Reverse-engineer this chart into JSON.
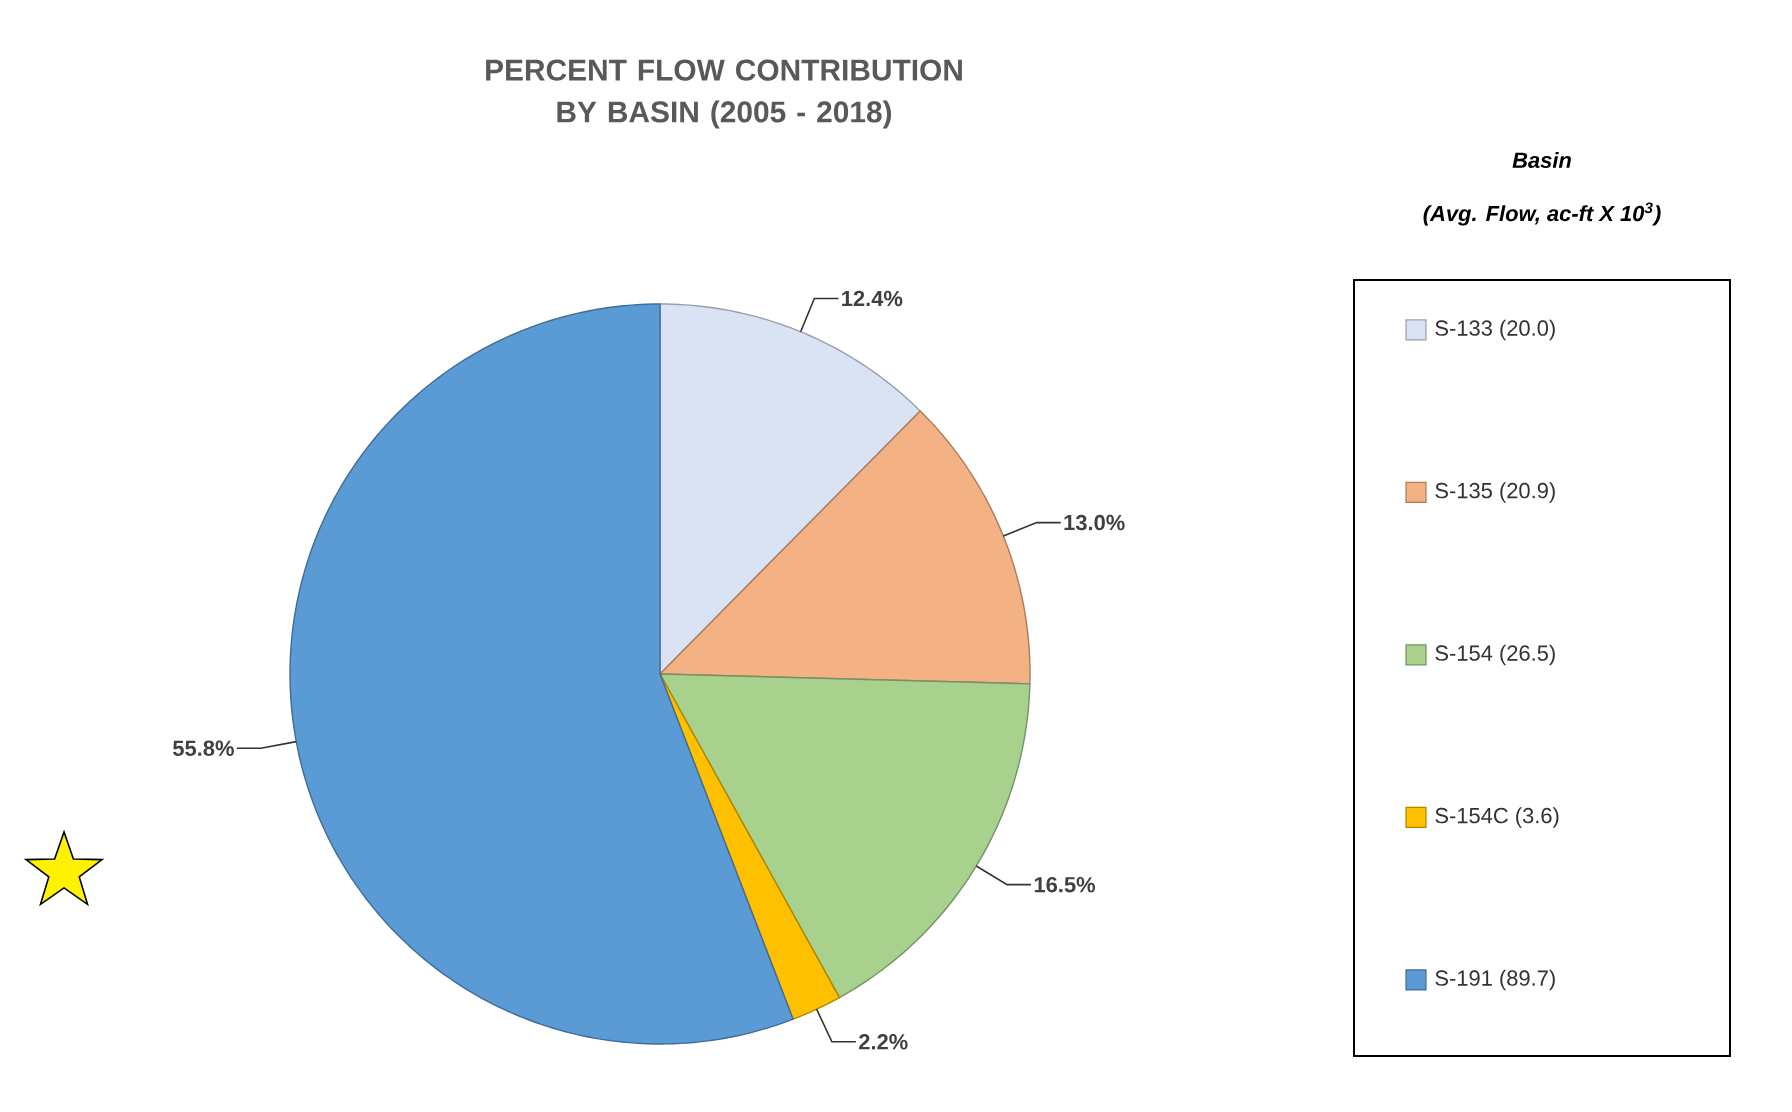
{
  "chart_data": {
    "type": "pie",
    "title": "PERCENT FLOW CONTRIBUTION BY BASIN (2005 - 2018)",
    "legend_title": "Basin",
    "annotations": [
      "(Avg. Flow, ac-ft X 10$^{3}$)"
    ],
    "categories": [
      "S-133 (20.0)",
      "S-135 (20.9)",
      "S-154 (26.5)",
      "S-154C (3.6)",
      "S-191 (89.7)"
    ],
    "values": [
      12.4,
      13.0,
      16.5,
      2.2,
      55.8
    ],
    "value_labels": [
      "12.4%",
      "13.0%",
      "16.5%",
      "2.2%",
      "55.8%"
    ],
    "colors": [
      "#dae3f3",
      "#f4b183",
      "#a9d18e",
      "#ffc000",
      "#5b9bd5"
    ],
    "legend": "right"
  }
}
